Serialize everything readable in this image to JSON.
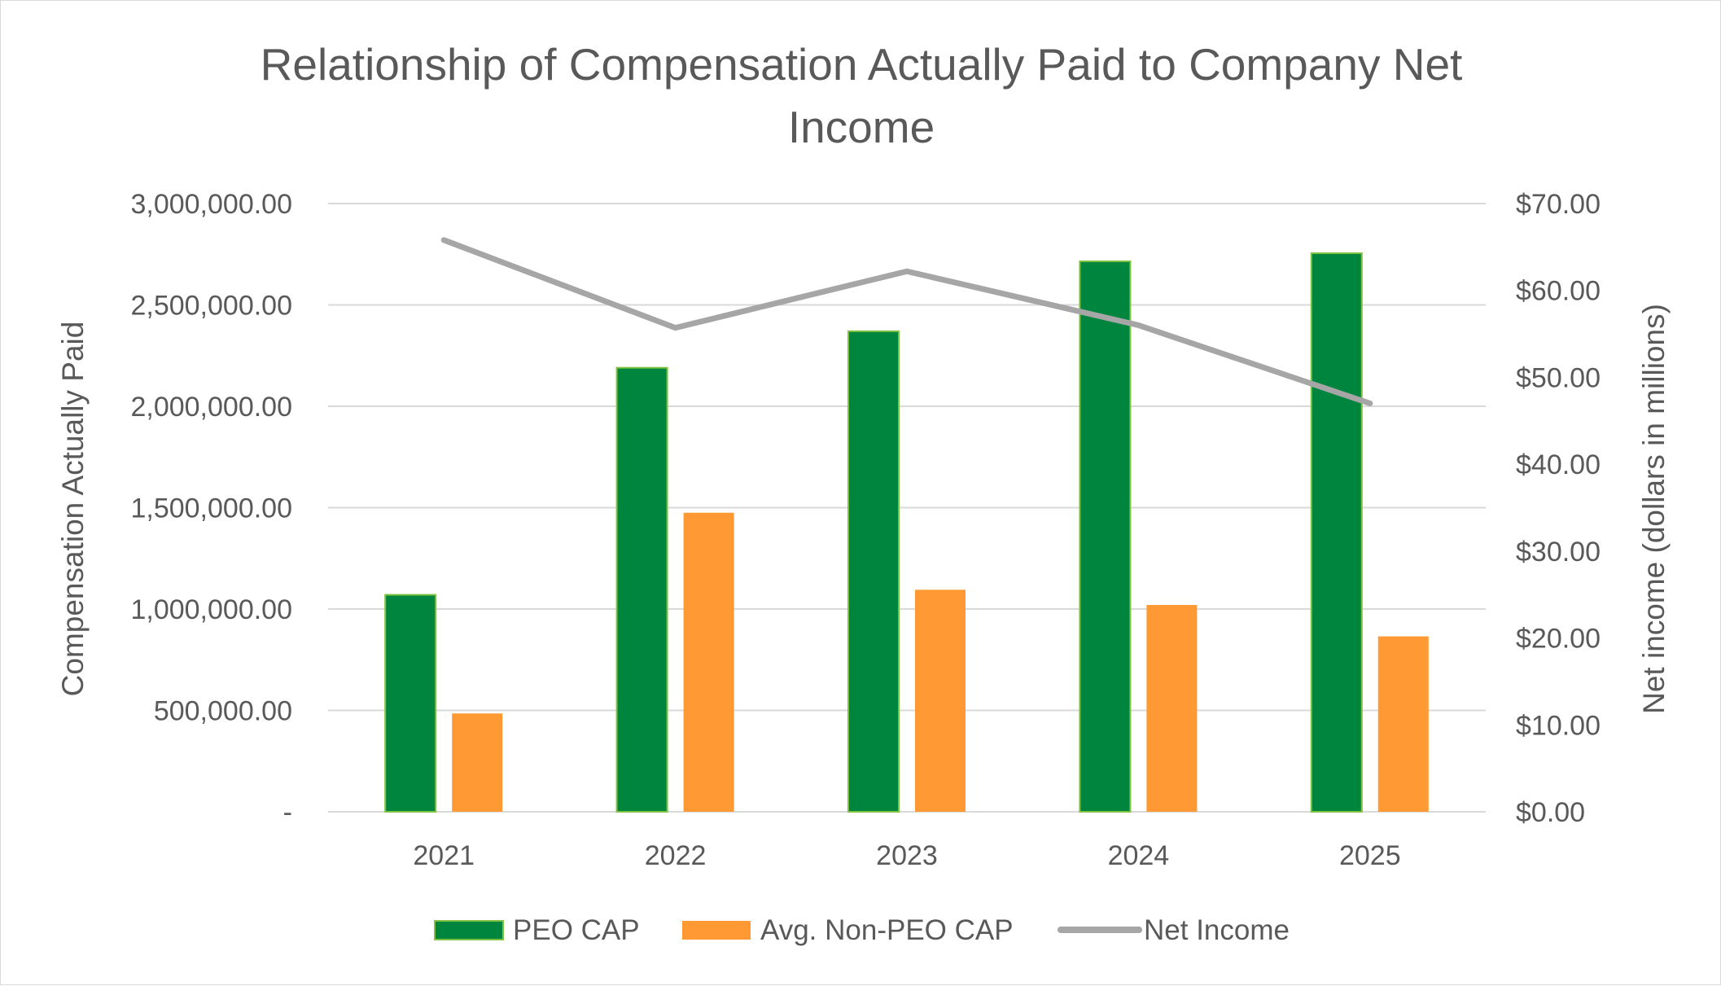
{
  "chart_data": {
    "type": "bar",
    "title_line1": "Relationship of Compensation Actually Paid to Company Net",
    "title_line2": "Income",
    "categories": [
      "2021",
      "2022",
      "2023",
      "2024",
      "2025"
    ],
    "series": [
      {
        "name": "PEO CAP",
        "type": "bar",
        "axis": "left",
        "color": "#00853f",
        "border": "#7fc241",
        "values": [
          1070000,
          2190000,
          2370000,
          2715000,
          2755000
        ]
      },
      {
        "name": "Avg. Non-PEO CAP",
        "type": "bar",
        "axis": "left",
        "color": "#ff9933",
        "values": [
          485000,
          1475000,
          1095000,
          1020000,
          865000
        ]
      },
      {
        "name": "Net Income",
        "type": "line",
        "axis": "right",
        "color": "#a6a6a6",
        "values": [
          65.8,
          55.7,
          62.2,
          56.0,
          47.0
        ]
      }
    ],
    "ylabel": "Compensation Actually Paid",
    "ylabel_right": "Net income (dollars in millions)",
    "ylim": [
      0,
      3000000
    ],
    "ylim_right": [
      0,
      70
    ],
    "yticks": [
      0,
      500000,
      1000000,
      1500000,
      2000000,
      2500000,
      3000000
    ],
    "ytick_labels": [
      "-",
      "500,000.00",
      "1,000,000.00",
      "1,500,000.00",
      "2,000,000.00",
      "2,500,000.00",
      "3,000,000.00"
    ],
    "yticks_right": [
      0,
      10,
      20,
      30,
      40,
      50,
      60,
      70
    ],
    "ytick_labels_right": [
      "$0.00",
      "$10.00",
      "$20.00",
      "$30.00",
      "$40.00",
      "$50.00",
      "$60.00",
      "$70.00"
    ],
    "grid": true,
    "legend_position": "bottom"
  }
}
